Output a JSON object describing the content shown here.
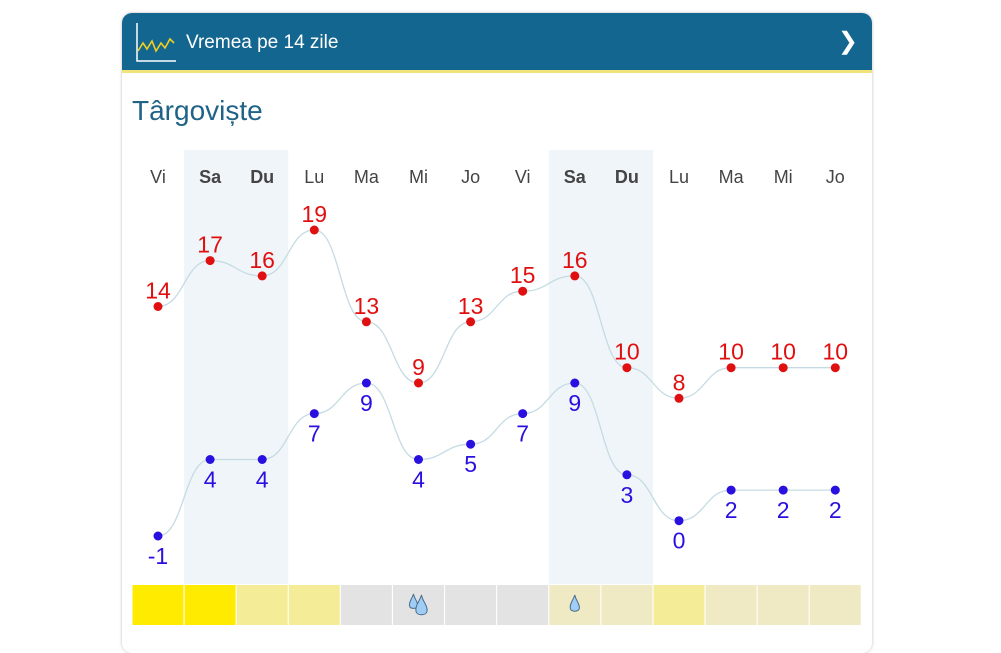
{
  "header": {
    "title": "Vremea pe 14 zile",
    "icon": "chart-line-icon",
    "next_icon": "chevron-right-icon"
  },
  "city": "Târgoviște",
  "colors": {
    "header": "#13668f",
    "high": "#e01010",
    "low": "#2a10e0"
  },
  "days": [
    {
      "label": "Vi",
      "weekend": false,
      "high": 14,
      "low": -1,
      "bar": "#ffeb00",
      "rain": 0
    },
    {
      "label": "Sa",
      "weekend": true,
      "high": 17,
      "low": 4,
      "bar": "#ffeb00",
      "rain": 0
    },
    {
      "label": "Du",
      "weekend": true,
      "high": 16,
      "low": 4,
      "bar": "#f5ec98",
      "rain": 0
    },
    {
      "label": "Lu",
      "weekend": false,
      "high": 19,
      "low": 7,
      "bar": "#f5ec98",
      "rain": 0
    },
    {
      "label": "Ma",
      "weekend": false,
      "high": 13,
      "low": 9,
      "bar": "#e3e3e3",
      "rain": 0
    },
    {
      "label": "Mi",
      "weekend": false,
      "high": 9,
      "low": 4,
      "bar": "#e3e3e3",
      "rain": 2
    },
    {
      "label": "Jo",
      "weekend": false,
      "high": 13,
      "low": 5,
      "bar": "#e3e3e3",
      "rain": 0
    },
    {
      "label": "Vi",
      "weekend": false,
      "high": 15,
      "low": 7,
      "bar": "#e3e3e3",
      "rain": 0
    },
    {
      "label": "Sa",
      "weekend": true,
      "high": 16,
      "low": 9,
      "bar": "#efe9c4",
      "rain": 1
    },
    {
      "label": "Du",
      "weekend": true,
      "high": 10,
      "low": 3,
      "bar": "#efe9c4",
      "rain": 0
    },
    {
      "label": "Lu",
      "weekend": false,
      "high": 8,
      "low": 0,
      "bar": "#f5ec98",
      "rain": 0
    },
    {
      "label": "Ma",
      "weekend": false,
      "high": 10,
      "low": 2,
      "bar": "#efe9c4",
      "rain": 0
    },
    {
      "label": "Mi",
      "weekend": false,
      "high": 10,
      "low": 2,
      "bar": "#efe9c4",
      "rain": 0
    },
    {
      "label": "Jo",
      "weekend": false,
      "high": 10,
      "low": 2,
      "bar": "#efe9c4",
      "rain": 0
    }
  ]
}
